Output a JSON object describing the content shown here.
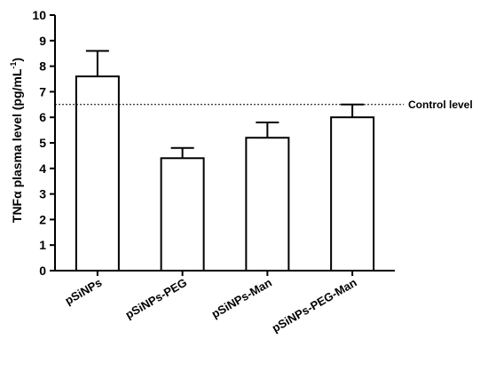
{
  "chart_data": {
    "type": "bar",
    "categories": [
      "pSiNPs",
      "pSiNPs-PEG",
      "pSiNPs-Man",
      "pSiNPs-PEG-Man"
    ],
    "values": [
      7.6,
      4.4,
      5.2,
      6.0
    ],
    "error_bars": [
      1.0,
      0.4,
      0.6,
      0.5
    ],
    "ylabel": "TNFα plasma level (pg/mL",
    "ylabel_superscript": "-1",
    "ylabel_close": ")",
    "ylim": [
      0,
      10
    ],
    "yticks": [
      0,
      1,
      2,
      3,
      4,
      5,
      6,
      7,
      8,
      9,
      10
    ],
    "reference_line": {
      "value": 6.5,
      "label": "Control level"
    },
    "grid": false,
    "bar_fill": "#ffffff",
    "bar_stroke": "#000000"
  }
}
